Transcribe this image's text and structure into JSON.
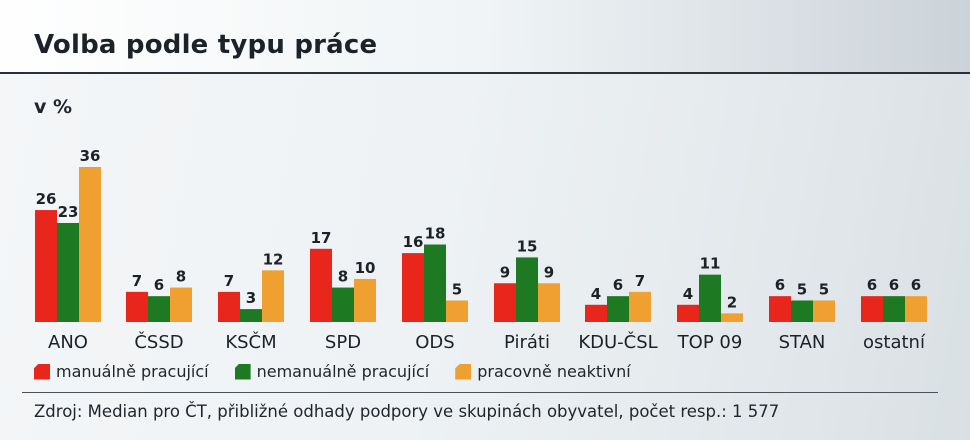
{
  "title": "Volba podle typu práce",
  "unit_label": "v %",
  "source": "Zdroj: Median pro ČT, přibližné odhady podpory ve skupinách obyvatel, počet resp.: 1 577",
  "colors": {
    "manual": "#e8261c",
    "nonmanual": "#1e7a22",
    "inactive": "#f0a030"
  },
  "legend": [
    {
      "label": "manuálně pracující",
      "color": "#e8261c"
    },
    {
      "label": "nemanuálně pracující",
      "color": "#1e7a22"
    },
    {
      "label": "pracovně neaktivní",
      "color": "#f0a030"
    }
  ],
  "chart_data": {
    "type": "bar",
    "title": "Volba podle typu práce",
    "ylabel": "v %",
    "categories": [
      "ANO",
      "ČSSD",
      "KSČM",
      "SPD",
      "ODS",
      "Piráti",
      "KDU-ČSL",
      "TOP 09",
      "STAN",
      "ostatní"
    ],
    "series": [
      {
        "name": "manuálně pracující",
        "color": "#e8261c",
        "values": [
          26,
          7,
          7,
          17,
          16,
          9,
          4,
          4,
          6,
          6
        ]
      },
      {
        "name": "nemanuálně pracující",
        "color": "#1e7a22",
        "values": [
          23,
          6,
          3,
          8,
          18,
          15,
          6,
          11,
          5,
          6
        ]
      },
      {
        "name": "pracovně neaktivní",
        "color": "#f0a030",
        "values": [
          36,
          8,
          12,
          10,
          5,
          9,
          7,
          2,
          5,
          6
        ]
      }
    ],
    "ylim": [
      0,
      36
    ],
    "grid": false,
    "legend_position": "bottom-left"
  }
}
